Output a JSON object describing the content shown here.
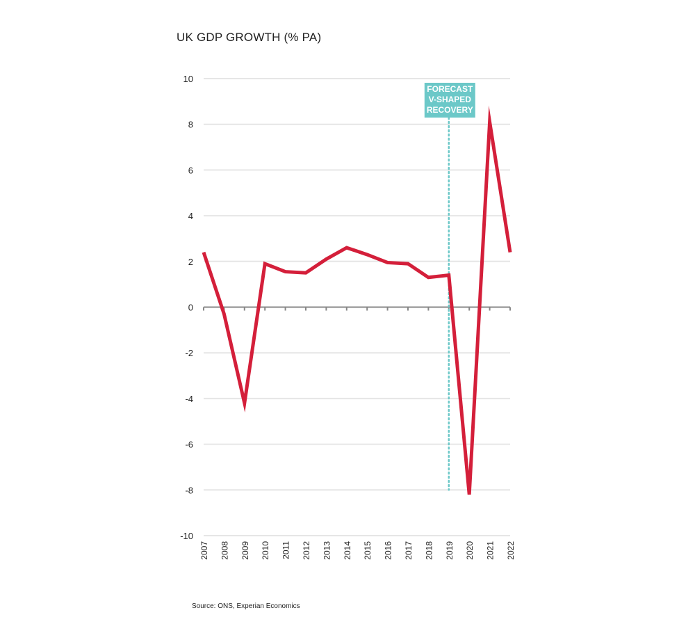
{
  "chart_data": {
    "type": "line",
    "title": "UK GDP GROWTH (% PA)",
    "xlabel": "",
    "ylabel": "",
    "categories": [
      "2007",
      "2008",
      "2009",
      "2010",
      "2011",
      "2012",
      "2013",
      "2014",
      "2015",
      "2016",
      "2017",
      "2018",
      "2019",
      "2020",
      "2021",
      "2022"
    ],
    "series": [
      {
        "values": [
          2.4,
          -0.3,
          -4.2,
          1.9,
          1.55,
          1.5,
          2.1,
          2.6,
          2.3,
          1.95,
          1.9,
          1.3,
          1.4,
          -8.2,
          8.1,
          2.4
        ],
        "color": "#d41f3a"
      }
    ],
    "ylim": [
      -10,
      10
    ],
    "yticks": [
      10,
      8,
      6,
      4,
      2,
      0,
      -2,
      -4,
      -6,
      -8,
      -10
    ],
    "grid": "horizontal",
    "legend": "none",
    "annotation": {
      "lines": [
        "FORECAST",
        "V-SHAPED",
        "RECOVERY"
      ],
      "at_category": "2019",
      "line_bottom_value": -8,
      "color": "#6cc8c8"
    }
  },
  "source": "Source: ONS, Experian Economics"
}
